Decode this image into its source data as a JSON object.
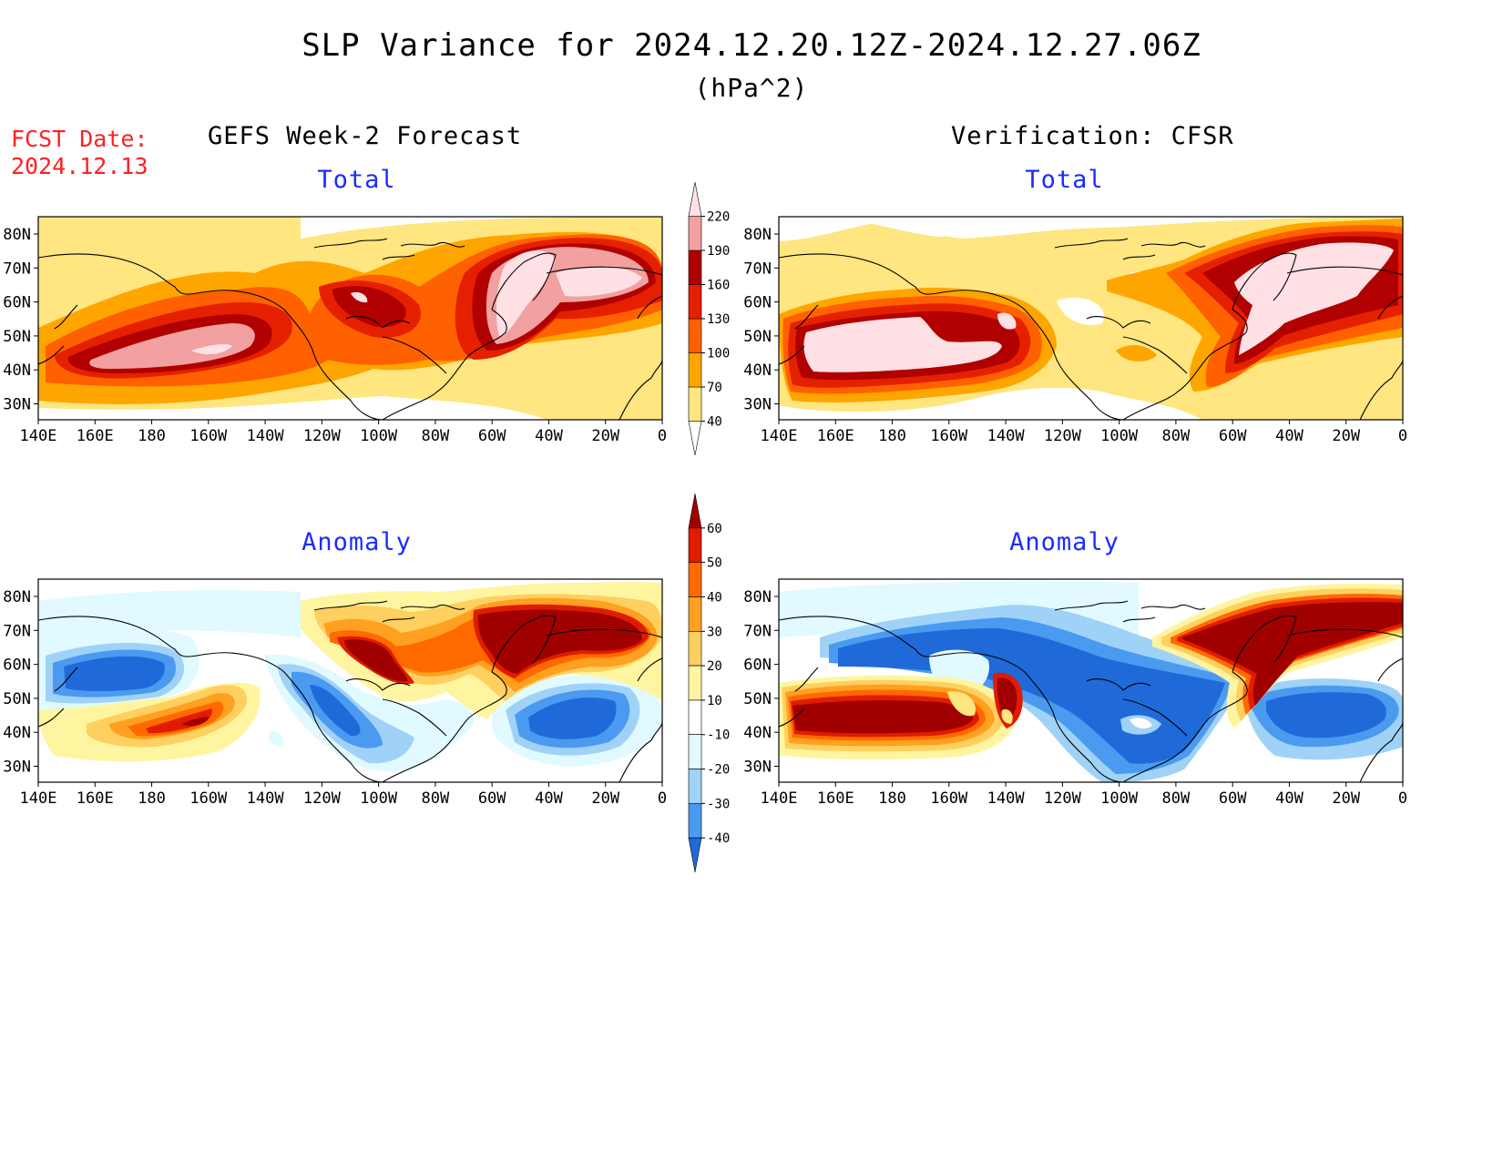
{
  "header": {
    "title": "SLP Variance for 2024.12.20.12Z-2024.12.27.06Z",
    "units": "(hPa^2)"
  },
  "fcst_date": {
    "label": "FCST Date:",
    "value": "2024.12.13"
  },
  "columns": {
    "left": "GEFS Week-2 Forecast",
    "right": "Verification: CFSR"
  },
  "panels": {
    "total_label": "Total",
    "anomaly_label": "Anomaly"
  },
  "axes": {
    "lon_labels": [
      "140E",
      "160E",
      "180",
      "160W",
      "140W",
      "120W",
      "100W",
      "80W",
      "60W",
      "40W",
      "20W",
      "0"
    ],
    "lat_labels": [
      "80N",
      "70N",
      "60N",
      "50N",
      "40N",
      "30N"
    ]
  },
  "colorbars": {
    "total": {
      "levels": [
        "40",
        "70",
        "100",
        "130",
        "160",
        "190",
        "220"
      ],
      "colors": [
        "#ffffff",
        "#ffe680",
        "#ffa500",
        "#ff6000",
        "#e52000",
        "#b00000",
        "#f2a0a0",
        "#ffe0e4"
      ]
    },
    "anomaly": {
      "levels": [
        "60",
        "50",
        "40",
        "30",
        "20",
        "10",
        "-10",
        "-20",
        "-30",
        "-40"
      ],
      "colors": [
        "#a00000",
        "#e01c00",
        "#ff6a00",
        "#ffa020",
        "#ffd060",
        "#fff5a0",
        "#ffffff",
        "#e0faff",
        "#a0d2f8",
        "#4a9af0",
        "#1f6ad8"
      ]
    }
  }
}
